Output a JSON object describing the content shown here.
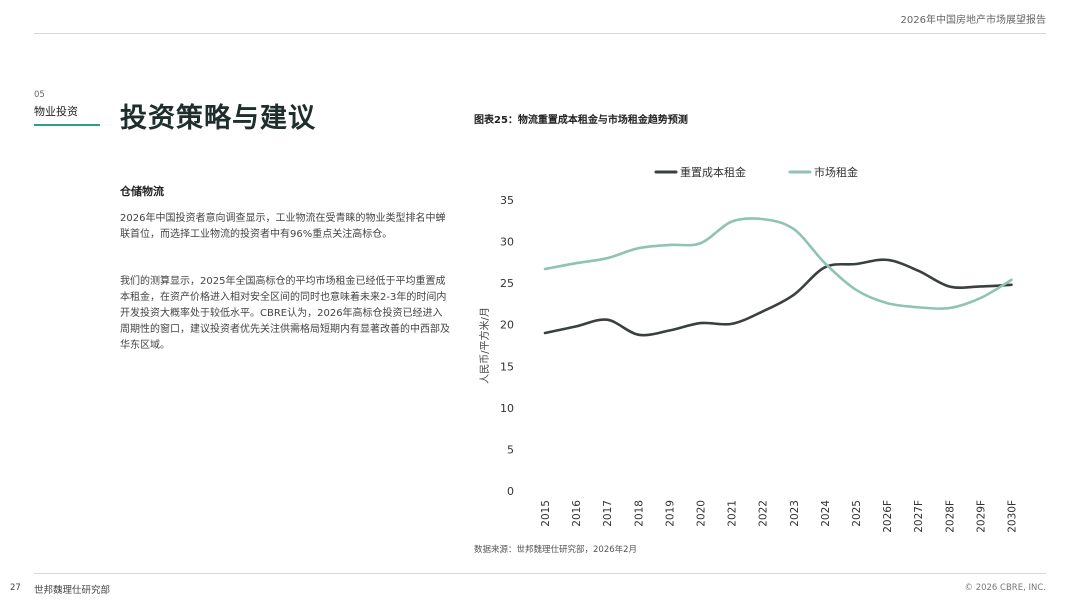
{
  "header": {
    "report_title": "2026年中国房地产市场展望报告"
  },
  "section": {
    "number": "05",
    "name": "物业投资"
  },
  "page_title": "投资策略与建议",
  "content": {
    "subheading": "仓储物流",
    "paragraph_1": "2026年中国投资者意向调查显示，工业物流在受青睐的物业类型排名中蝉联首位，而选择工业物流的投资者中有96%重点关注高标仓。",
    "paragraph_2": "我们的测算显示，2025年全国高标仓的平均市场租金已经低于平均重置成本租金，在资产价格进入相对安全区间的同时也意味着未来2-3年的时间内开发投资大概率处于较低水平。CBRE认为，2026年高标仓投资已经进入周期性的窗口，建议投资者优先关注供需格局短期内有显著改善的中西部及华东区域。"
  },
  "chart_title": "图表25：物流重置成本租金与市场租金趋势预测",
  "chart_data": {
    "type": "line",
    "categories": [
      "2015",
      "2016",
      "2017",
      "2018",
      "2019",
      "2020",
      "2021",
      "2022",
      "2023",
      "2024",
      "2025",
      "2026F",
      "2027F",
      "2028F",
      "2029F",
      "2030F"
    ],
    "series": [
      {
        "name": "重置成本租金",
        "color": "#3a3f3f",
        "values": [
          19.0,
          19.8,
          20.6,
          18.8,
          19.3,
          20.2,
          20.1,
          21.6,
          23.6,
          26.9,
          27.3,
          27.8,
          26.5,
          24.6,
          24.6,
          24.8
        ]
      },
      {
        "name": "市场租金",
        "color": "#8ec3b5",
        "values": [
          26.7,
          27.4,
          28.0,
          29.2,
          29.6,
          29.8,
          32.4,
          32.7,
          31.5,
          27.4,
          24.2,
          22.6,
          22.1,
          22.0,
          23.2,
          25.4
        ]
      }
    ],
    "ylabel": "人民币/平方米/月",
    "ylim": [
      0,
      35
    ],
    "yticks": [
      0,
      5,
      10,
      15,
      20,
      25,
      30,
      35
    ],
    "grid": false,
    "legend_position": "top"
  },
  "source": "数据来源：世邦魏理仕研究部，2026年2月",
  "footer": {
    "page_number": "27",
    "org": "世邦魏理仕研究部",
    "copyright": "© 2026 CBRE, INC."
  }
}
